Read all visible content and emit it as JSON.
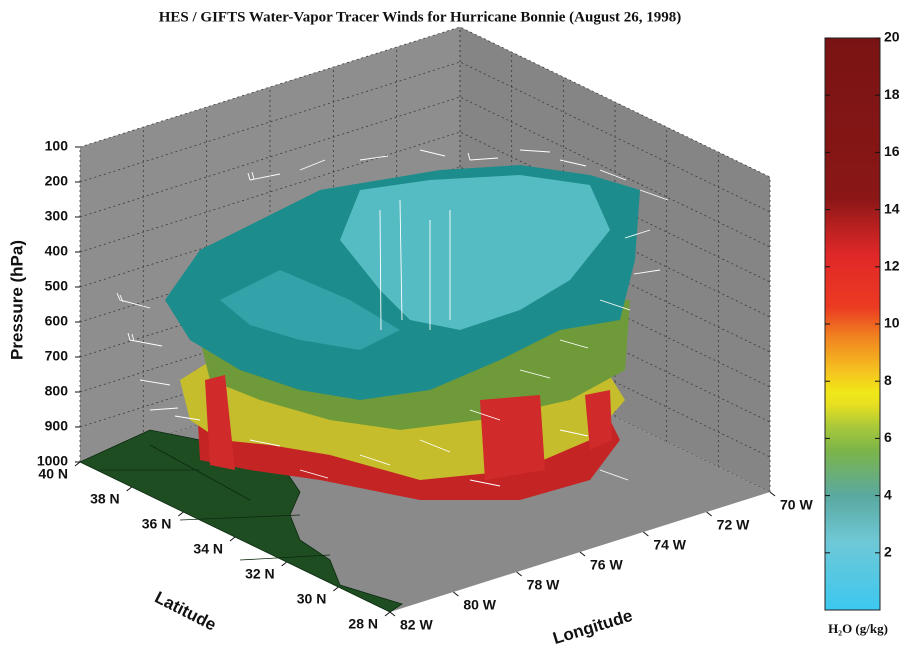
{
  "chart_data": {
    "type": "volume3d",
    "title": "HES / GIFTS Water-Vapor Tracer Winds for Hurricane Bonnie (August 26, 1998)",
    "xlabel": "Latitude",
    "ylabel": "Longitude",
    "zlabel": "Pressure (hPa)",
    "colorbar_label": "H₂O (g/kg)",
    "xlim": [
      28,
      40
    ],
    "xticks": [
      {
        "value": 28,
        "label": "28 N"
      },
      {
        "value": 30,
        "label": "30 N"
      },
      {
        "value": 32,
        "label": "32 N"
      },
      {
        "value": 34,
        "label": "34 N"
      },
      {
        "value": 36,
        "label": "36 N"
      },
      {
        "value": 38,
        "label": "38 N"
      },
      {
        "value": 40,
        "label": "40 N"
      }
    ],
    "ylim": [
      82,
      70
    ],
    "yticks": [
      {
        "value": 82,
        "label": "82 W"
      },
      {
        "value": 80,
        "label": "80 W"
      },
      {
        "value": 78,
        "label": "78 W"
      },
      {
        "value": 76,
        "label": "76 W"
      },
      {
        "value": 74,
        "label": "74 W"
      },
      {
        "value": 72,
        "label": "72 W"
      },
      {
        "value": 70,
        "label": "70 W"
      }
    ],
    "zlim": [
      1000,
      100
    ],
    "zticks": [
      100,
      200,
      300,
      400,
      500,
      600,
      700,
      800,
      900,
      1000
    ],
    "clim": [
      0,
      20
    ],
    "cticks": [
      2,
      4,
      6,
      8,
      10,
      12,
      14,
      16,
      18,
      20
    ],
    "grid": true
  }
}
